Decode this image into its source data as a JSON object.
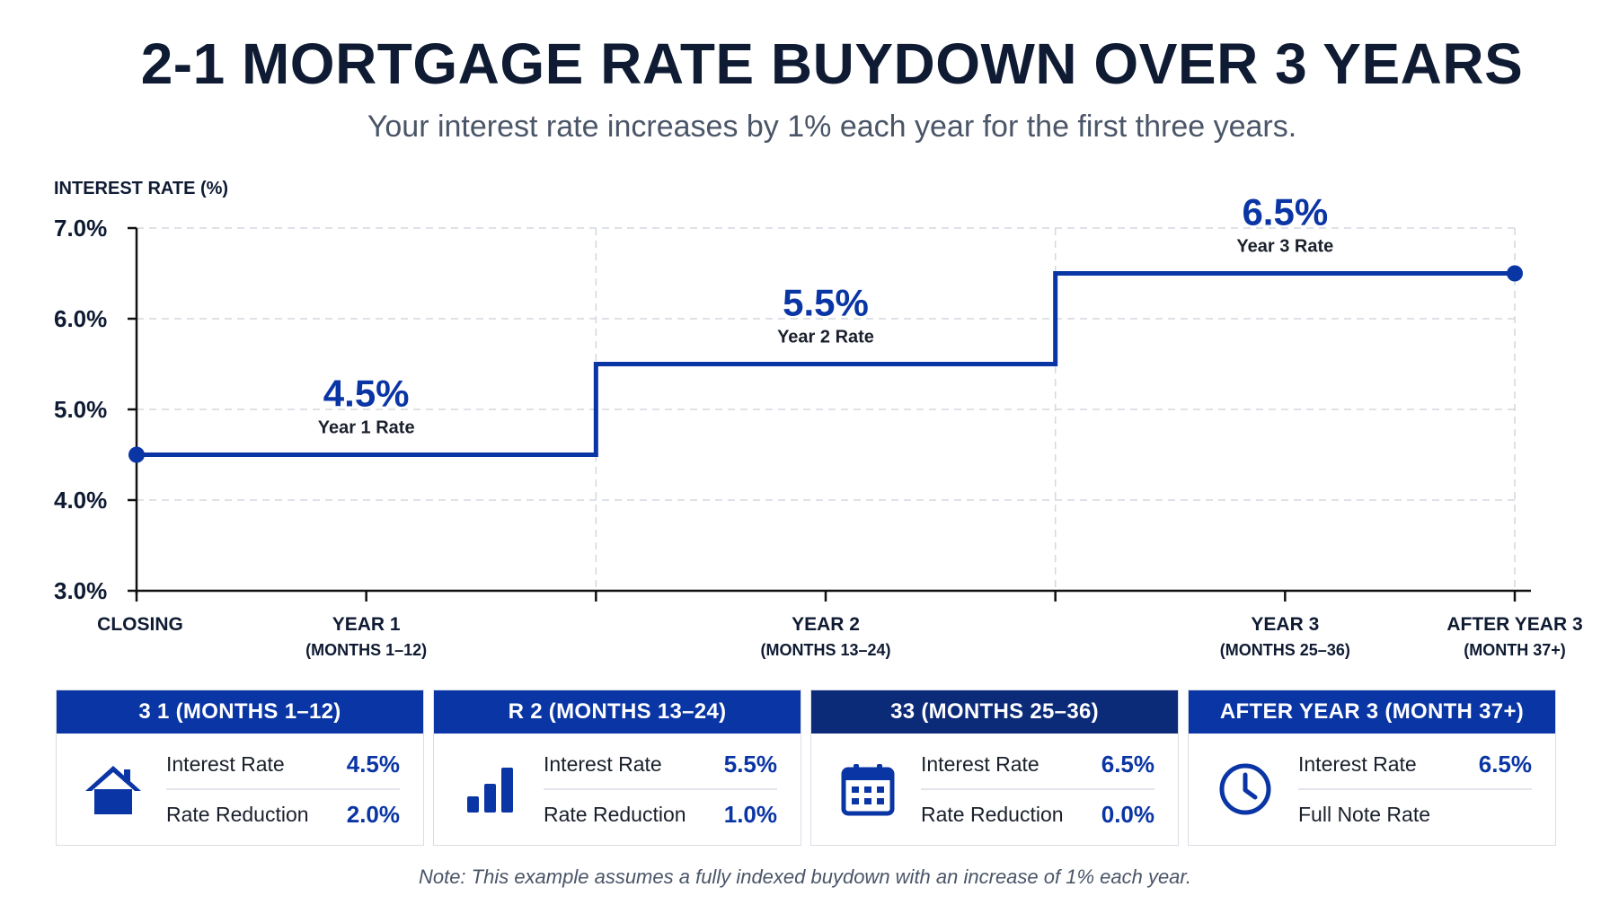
{
  "title": "2-1 MORTGAGE RATE BUYDOWN OVER 3 YEARS",
  "subtitle": "Your interest rate increases by 1% each year for the first three years.",
  "chart_data": {
    "type": "line",
    "step": true,
    "ylabel": "INTEREST RATE (%)",
    "xlabel": "",
    "ylim": [
      3.0,
      7.0
    ],
    "y_ticks": [
      "3.0%",
      "4.0%",
      "5.0%",
      "6.0%",
      "7.0%"
    ],
    "grid": true,
    "x_months": [
      0,
      12,
      24,
      36
    ],
    "x_labels": [
      {
        "month": 0,
        "line1": "CLOSING",
        "line2": ""
      },
      {
        "month": 6,
        "line1": "YEAR 1",
        "line2": "(MONTHS 1–12)"
      },
      {
        "month": 18,
        "line1": "YEAR 2",
        "line2": "(MONTHS 13–24)"
      },
      {
        "month": 30,
        "line1": "YEAR 3",
        "line2": "(MONTHS 25–36)"
      },
      {
        "month": 36,
        "line1": "AFTER YEAR 3",
        "line2": "(MONTH 37+)"
      }
    ],
    "series": [
      {
        "color": "#0a35a4",
        "steps": [
          {
            "from": 0,
            "to": 12,
            "rate": 4.5
          },
          {
            "from": 12,
            "to": 24,
            "rate": 5.5
          },
          {
            "from": 24,
            "to": 36,
            "rate": 6.5
          }
        ]
      }
    ],
    "annotations": [
      {
        "value": "4.5%",
        "label": "Year 1 Rate",
        "month": 6,
        "rate": 4.5
      },
      {
        "value": "5.5%",
        "label": "Year 2 Rate",
        "month": 18,
        "rate": 5.5
      },
      {
        "value": "6.5%",
        "label": "Year 3 Rate",
        "month": 30,
        "rate": 6.5
      }
    ]
  },
  "cards": [
    {
      "header": "3 1 (MONTHS 1–12)",
      "icon": "house-icon",
      "rows": [
        {
          "label": "Interest Rate",
          "value": "4.5%"
        },
        {
          "label": "Rate Reduction",
          "value": "2.0%"
        }
      ]
    },
    {
      "header": "R 2 (MONTHS 13–24)",
      "icon": "bar-chart-icon",
      "rows": [
        {
          "label": "Interest Rate",
          "value": "5.5%"
        },
        {
          "label": "Rate Reduction",
          "value": "1.0%"
        }
      ]
    },
    {
      "header": "33 (MONTHS 25–36)",
      "icon": "calendar-icon",
      "rows": [
        {
          "label": "Interest Rate",
          "value": "6.5%"
        },
        {
          "label": "Rate Reduction",
          "value": "0.0%"
        }
      ]
    },
    {
      "header": "AFTER YEAR 3 (MONTH 37+)",
      "icon": "clock-icon",
      "rows": [
        {
          "label": "Interest Rate",
          "value": "6.5%"
        },
        {
          "label": "Full Note Rate",
          "value": ""
        }
      ]
    }
  ],
  "note": "Note: This example assumes a fully indexed buydown with an increase of 1% each year.",
  "colors": {
    "accent": "#0a35a4",
    "header_dark": "#0b2a78",
    "text": "#0f1b33"
  }
}
